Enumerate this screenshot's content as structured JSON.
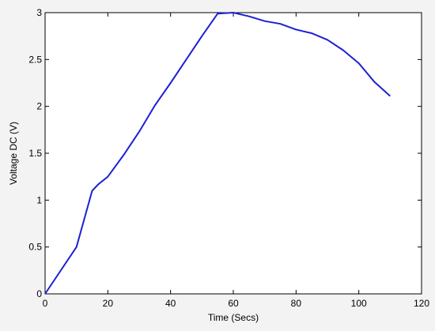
{
  "chart_data": {
    "type": "line",
    "title": "",
    "xlabel": "Time (Secs)",
    "ylabel": "Voltage DC (V)",
    "xlim": [
      0,
      120
    ],
    "ylim": [
      0,
      3
    ],
    "xticks": [
      0,
      20,
      40,
      60,
      80,
      100,
      120
    ],
    "yticks": [
      0,
      0.5,
      1,
      1.5,
      2,
      2.5,
      3
    ],
    "xtick_labels": [
      "0",
      "20",
      "40",
      "60",
      "80",
      "100",
      "120"
    ],
    "ytick_labels": [
      "0",
      "0.5",
      "1",
      "1.5",
      "2",
      "2.5",
      "3"
    ],
    "grid": false,
    "legend": "none",
    "colors": {
      "line": "#1f1fd6",
      "axes_bg": "#ffffff",
      "figure_bg": "#f3f3f3",
      "axis": "#000000"
    },
    "series": [
      {
        "x": [
          0,
          10,
          15,
          17,
          20,
          25,
          30,
          35,
          40,
          45,
          50,
          55,
          60,
          65,
          70,
          75,
          80,
          85,
          90,
          95,
          100,
          105,
          110
        ],
        "y": [
          0,
          0.5,
          1.1,
          1.17,
          1.25,
          1.48,
          1.73,
          2.01,
          2.25,
          2.5,
          2.75,
          2.99,
          3.0,
          2.96,
          2.91,
          2.88,
          2.82,
          2.78,
          2.71,
          2.6,
          2.46,
          2.26,
          2.11
        ]
      }
    ]
  }
}
